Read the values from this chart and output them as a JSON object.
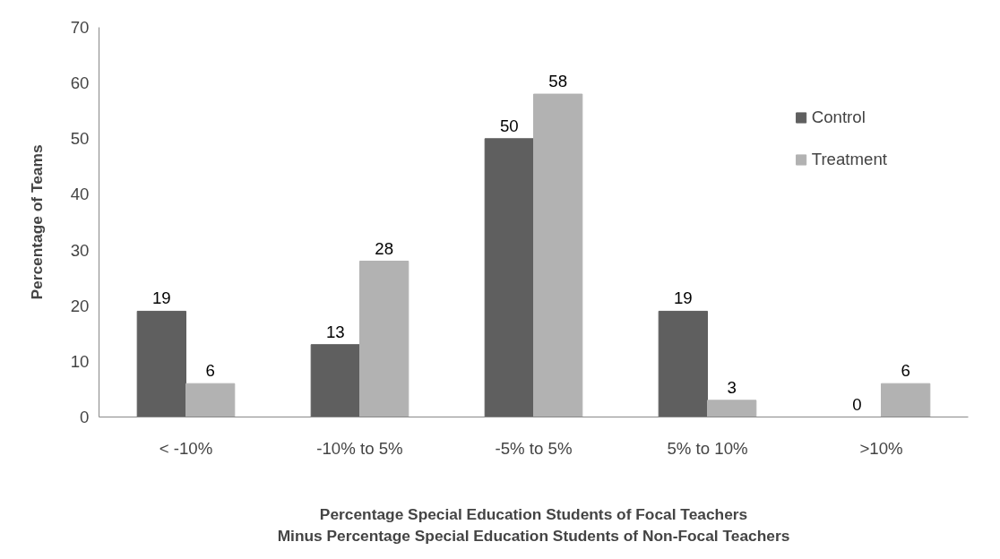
{
  "chart_data": {
    "type": "bar",
    "xlabel": "Percentage Special Education Students of Focal Teachers\nMinus Percentage Special Education Students of Non-Focal Teachers",
    "ylabel": "Percentage of Teams",
    "categories": [
      "< -10%",
      "-10% to 5%",
      "-5% to 5%",
      "5% to 10%",
      ">10%"
    ],
    "series": [
      {
        "name": "Control",
        "color": "#5f5f5f",
        "values": [
          19,
          13,
          50,
          19,
          0
        ]
      },
      {
        "name": "Treatment",
        "color": "#b2b2b2",
        "values": [
          6,
          28,
          58,
          3,
          6
        ]
      }
    ],
    "ylim": [
      0,
      70
    ],
    "yticks": [
      0,
      10,
      20,
      30,
      40,
      50,
      60,
      70
    ],
    "grid": false,
    "legend": "top right",
    "data_labels": true
  }
}
